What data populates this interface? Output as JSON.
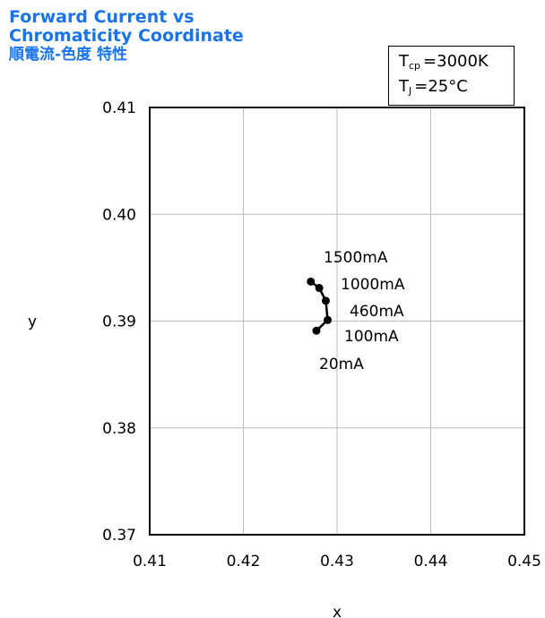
{
  "title": {
    "line1": "Forward Current vs",
    "line2": "Chromaticity Coordinate",
    "line3": "順電流-色度 特性",
    "color": "#1a73e8"
  },
  "conditions": {
    "tcp_symbol": "T",
    "tcp_sub": "cp",
    "tcp_value": "=3000K",
    "tj_symbol": "T",
    "tj_sub": "J",
    "tj_value": "=25°C"
  },
  "chart_data": {
    "type": "line",
    "xlabel": "x",
    "ylabel": "y",
    "xlim": [
      0.41,
      0.45
    ],
    "ylim": [
      0.37,
      0.41
    ],
    "xticks": [
      "0.41",
      "0.42",
      "0.43",
      "0.44",
      "0.45"
    ],
    "yticks": [
      "0.37",
      "0.38",
      "0.39",
      "0.40",
      "0.41"
    ],
    "grid": true,
    "series": [
      {
        "points": [
          {
            "label": "20mA",
            "x": 0.4278,
            "y": 0.3891
          },
          {
            "label": "100mA",
            "x": 0.429,
            "y": 0.3901
          },
          {
            "label": "460mA",
            "x": 0.4288,
            "y": 0.3919
          },
          {
            "label": "1000mA",
            "x": 0.4281,
            "y": 0.3931
          },
          {
            "label": "1500mA",
            "x": 0.4272,
            "y": 0.3937
          }
        ]
      }
    ],
    "point_labels": [
      "1500mA",
      "1000mA",
      "460mA",
      "100mA",
      "20mA"
    ],
    "line_color": "#000000",
    "grid_color": "#bdbdbd"
  }
}
